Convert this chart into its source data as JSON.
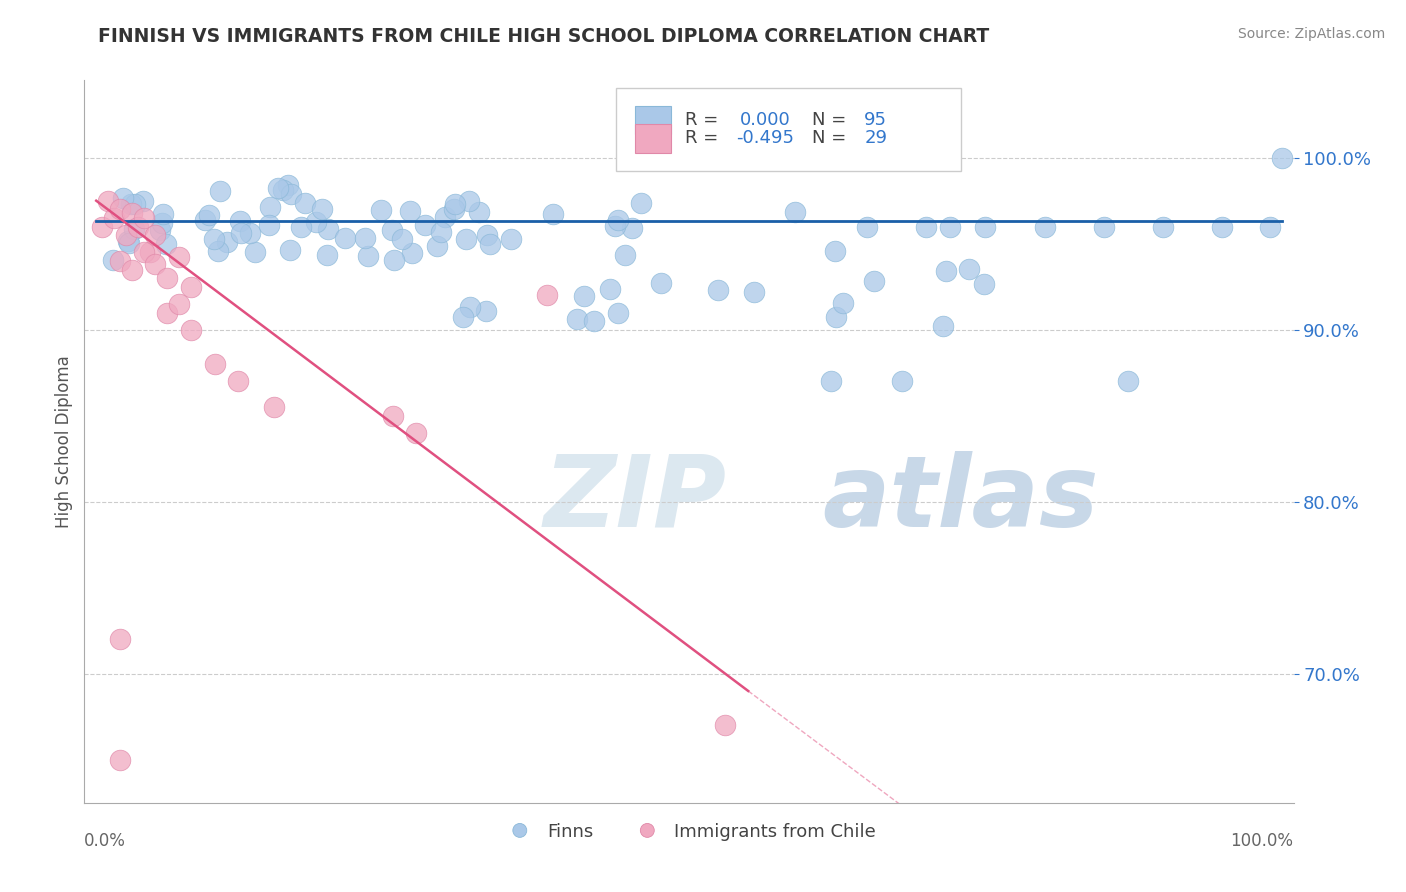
{
  "title": "FINNISH VS IMMIGRANTS FROM CHILE HIGH SCHOOL DIPLOMA CORRELATION CHART",
  "source": "Source: ZipAtlas.com",
  "ylabel": "High School Diploma",
  "ytick_labels": [
    "70.0%",
    "80.0%",
    "90.0%",
    "100.0%"
  ],
  "ytick_values": [
    0.7,
    0.8,
    0.9,
    1.0
  ],
  "ylim": [
    0.625,
    1.045
  ],
  "xlim": [
    -0.01,
    1.01
  ],
  "legend_r_blue": "0.000",
  "legend_n_blue": "95",
  "legend_r_pink": "-0.495",
  "legend_n_pink": "29",
  "blue_color": "#aac8e8",
  "pink_color": "#f0a8c0",
  "blue_line_color": "#1a5fa8",
  "pink_line_color": "#e05080",
  "grid_color": "#cccccc",
  "watermark_zip_color": "#dce8f0",
  "watermark_atlas_color": "#c8d8e8",
  "text_dark": "#444444",
  "text_blue": "#3377cc",
  "text_pink": "#cc3366"
}
